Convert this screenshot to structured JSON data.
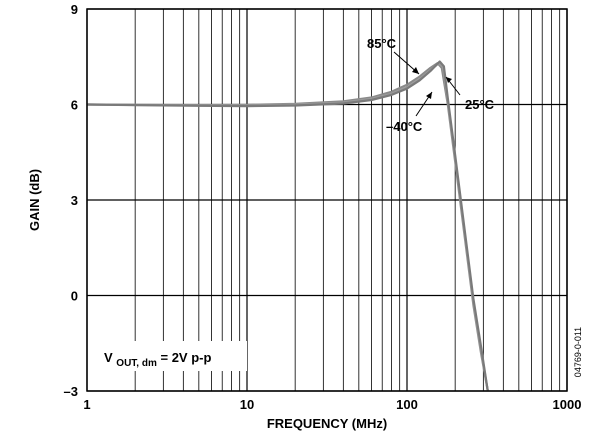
{
  "chart_data": {
    "type": "line",
    "title": "",
    "xlabel": "FREQUENCY (MHz)",
    "ylabel": "GAIN (dB)",
    "x_scale": "log",
    "xlim": [
      1,
      1000
    ],
    "ylim": [
      -3,
      9
    ],
    "x_ticks": [
      1,
      10,
      100,
      1000
    ],
    "x_tick_labels": [
      "1",
      "10",
      "100",
      "1000"
    ],
    "y_ticks": [
      9,
      6,
      3,
      0,
      -3
    ],
    "y_tick_labels": [
      "9",
      "6",
      "3",
      "0",
      "–3"
    ],
    "grid": true,
    "legend": "none",
    "series": [
      {
        "name": "85°C",
        "color": "#8a8a8a",
        "x": [
          1,
          2,
          5,
          10,
          20,
          40,
          60,
          80,
          100,
          120,
          140,
          155,
          165,
          180,
          200,
          230,
          260,
          290,
          320
        ],
        "y": [
          6.0,
          5.99,
          5.98,
          5.99,
          6.02,
          6.1,
          6.22,
          6.4,
          6.62,
          6.88,
          7.15,
          7.3,
          7.15,
          6.0,
          4.2,
          1.8,
          -0.3,
          -1.8,
          -3.0
        ]
      },
      {
        "name": "25°C",
        "color": "#9a9a9a",
        "x": [
          1,
          2,
          5,
          10,
          20,
          40,
          60,
          80,
          100,
          120,
          140,
          158,
          168,
          180,
          200,
          230,
          260,
          290,
          320
        ],
        "y": [
          6.0,
          5.99,
          5.97,
          5.97,
          6.0,
          6.06,
          6.18,
          6.34,
          6.54,
          6.8,
          7.08,
          7.3,
          7.18,
          6.1,
          4.3,
          1.9,
          -0.2,
          -1.7,
          -3.0
        ]
      },
      {
        "name": "–40°C",
        "color": "#7a7a7a",
        "x": [
          1,
          2,
          5,
          10,
          20,
          40,
          60,
          80,
          100,
          120,
          140,
          160,
          170,
          180,
          200,
          230,
          260,
          290,
          320
        ],
        "y": [
          6.0,
          5.98,
          5.96,
          5.95,
          5.97,
          6.03,
          6.14,
          6.3,
          6.5,
          6.76,
          7.05,
          7.35,
          7.2,
          6.2,
          4.4,
          2.0,
          -0.1,
          -1.6,
          -3.0
        ]
      }
    ],
    "annotations": [
      {
        "text": "85°C",
        "series": "85°C",
        "x": 130,
        "y": 7.0
      },
      {
        "text": "25°C",
        "series": "25°C",
        "x": 180,
        "y": 7.1
      },
      {
        "text": "–40°C",
        "series": "–40°C",
        "x": 150,
        "y": 6.6
      }
    ],
    "condition": {
      "base": "V",
      "sub": "OUT, dm",
      "rest": " = 2V p-p"
    },
    "figure_code": "04769-0-011"
  }
}
